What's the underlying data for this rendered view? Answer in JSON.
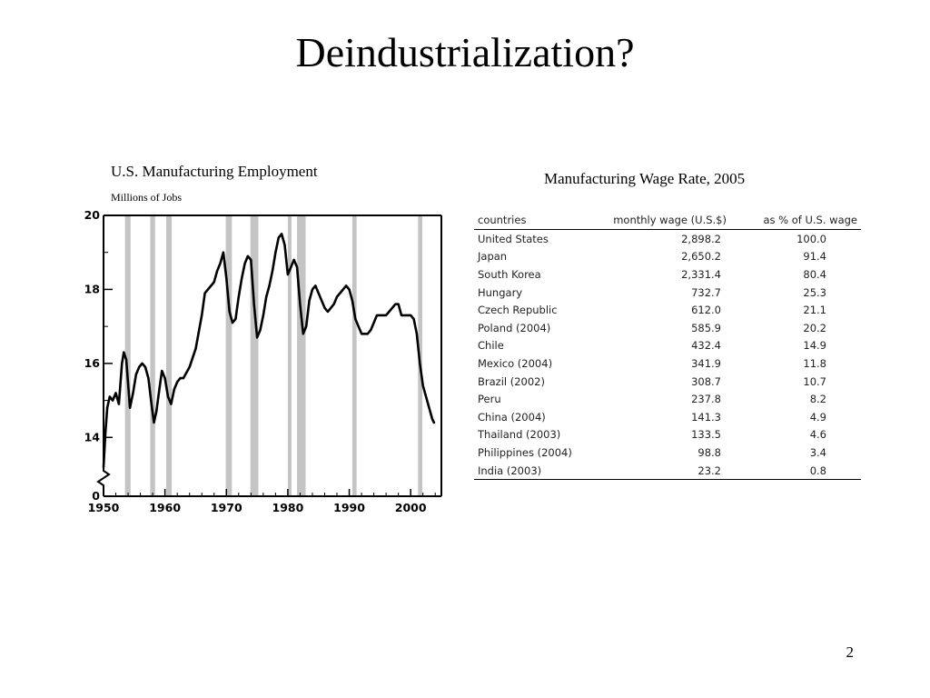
{
  "slide": {
    "title": "Deindustrialization?",
    "page_number": "2"
  },
  "chart_data": [
    {
      "type": "line",
      "title": "U.S. Manufacturing Employment",
      "subtitle": "Millions of Jobs",
      "xlabel": "",
      "ylabel": "",
      "xlim": [
        1950,
        2005
      ],
      "ylim": [
        0,
        20
      ],
      "y_axis_break": [
        0,
        13
      ],
      "xticks": [
        1950,
        1960,
        1970,
        1980,
        1990,
        2000
      ],
      "yticks": [
        0,
        14,
        16,
        18,
        20
      ],
      "recession_shading": [
        [
          1953.5,
          1954.4
        ],
        [
          1957.6,
          1958.4
        ],
        [
          1960.2,
          1961.1
        ],
        [
          1969.9,
          1970.9
        ],
        [
          1973.9,
          1975.2
        ],
        [
          1980.0,
          1980.6
        ],
        [
          1981.5,
          1982.9
        ],
        [
          1990.5,
          1991.2
        ],
        [
          2001.2,
          2001.9
        ]
      ],
      "series": [
        {
          "x": [
            1950.0,
            1950.3,
            1950.6,
            1951.0,
            1951.5,
            1952.0,
            1952.5,
            1953.0,
            1953.3,
            1953.7,
            1954.3,
            1954.8,
            1955.3,
            1955.8,
            1956.3,
            1956.8,
            1957.3,
            1957.8,
            1958.2,
            1958.6,
            1959.0,
            1959.5,
            1960.0,
            1960.5,
            1961.0,
            1961.5,
            1962.0,
            1962.5,
            1963.0,
            1964.0,
            1965.0,
            1966.0,
            1966.5,
            1967.0,
            1967.5,
            1968.0,
            1968.5,
            1969.0,
            1969.5,
            1970.0,
            1970.5,
            1971.0,
            1971.5,
            1972.0,
            1972.5,
            1973.0,
            1973.5,
            1974.0,
            1974.5,
            1975.0,
            1975.5,
            1976.0,
            1976.5,
            1977.0,
            1977.5,
            1978.0,
            1978.5,
            1979.0,
            1979.5,
            1980.0,
            1980.5,
            1981.0,
            1981.5,
            1982.0,
            1982.5,
            1983.0,
            1983.5,
            1984.0,
            1984.5,
            1985.0,
            1985.5,
            1986.0,
            1986.5,
            1987.0,
            1987.5,
            1988.0,
            1988.5,
            1989.0,
            1989.5,
            1990.0,
            1990.5,
            1991.0,
            1991.5,
            1992.0,
            1992.5,
            1993.0,
            1993.5,
            1994.0,
            1994.5,
            1995.0,
            1995.5,
            1996.0,
            1996.5,
            1997.0,
            1997.5,
            1998.0,
            1998.5,
            1999.0,
            1999.5,
            2000.0,
            2000.5,
            2001.0,
            2001.5,
            2002.0,
            2002.5,
            2003.0,
            2003.5,
            2003.8
          ],
          "y": [
            13.2,
            14.1,
            14.8,
            15.1,
            15.0,
            15.2,
            14.9,
            16.0,
            16.3,
            16.1,
            14.8,
            15.2,
            15.7,
            15.9,
            16.0,
            15.9,
            15.6,
            14.9,
            14.4,
            14.7,
            15.2,
            15.8,
            15.6,
            15.1,
            14.9,
            15.3,
            15.5,
            15.6,
            15.6,
            15.9,
            16.4,
            17.3,
            17.9,
            18.0,
            18.1,
            18.2,
            18.5,
            18.7,
            19.0,
            18.3,
            17.4,
            17.1,
            17.2,
            17.8,
            18.3,
            18.7,
            18.9,
            18.8,
            17.6,
            16.7,
            16.9,
            17.3,
            17.8,
            18.1,
            18.5,
            19.0,
            19.4,
            19.5,
            19.2,
            18.4,
            18.6,
            18.8,
            18.6,
            17.6,
            16.8,
            17.0,
            17.7,
            18.0,
            18.1,
            17.9,
            17.7,
            17.5,
            17.4,
            17.5,
            17.6,
            17.8,
            17.9,
            18.0,
            18.1,
            18.0,
            17.7,
            17.2,
            17.0,
            16.8,
            16.8,
            16.8,
            16.9,
            17.1,
            17.3,
            17.3,
            17.3,
            17.3,
            17.4,
            17.5,
            17.6,
            17.6,
            17.3,
            17.3,
            17.3,
            17.3,
            17.2,
            16.8,
            16.0,
            15.4,
            15.1,
            14.8,
            14.5,
            14.4
          ]
        }
      ]
    },
    {
      "type": "table",
      "title": "Manufacturing Wage Rate, 2005",
      "columns": [
        "countries",
        "monthly wage (U.S.$)",
        "as % of U.S. wage"
      ],
      "rows": [
        [
          "United States",
          "2,898.2",
          "100.0"
        ],
        [
          "Japan",
          "2,650.2",
          "91.4"
        ],
        [
          "South Korea",
          "2,331.4",
          "80.4"
        ],
        [
          "Hungary",
          "732.7",
          "25.3"
        ],
        [
          "Czech Republic",
          "612.0",
          "21.1"
        ],
        [
          "Poland (2004)",
          "585.9",
          "20.2"
        ],
        [
          "Chile",
          "432.4",
          "14.9"
        ],
        [
          "Mexico (2004)",
          "341.9",
          "11.8"
        ],
        [
          "Brazil (2002)",
          "308.7",
          "10.7"
        ],
        [
          "Peru",
          "237.8",
          "8.2"
        ],
        [
          "China (2004)",
          "141.3",
          "4.9"
        ],
        [
          "Thailand (2003)",
          "133.5",
          "4.6"
        ],
        [
          "Philippines (2004)",
          "98.8",
          "3.4"
        ],
        [
          "India (2003)",
          "23.2",
          "0.8"
        ]
      ]
    }
  ]
}
